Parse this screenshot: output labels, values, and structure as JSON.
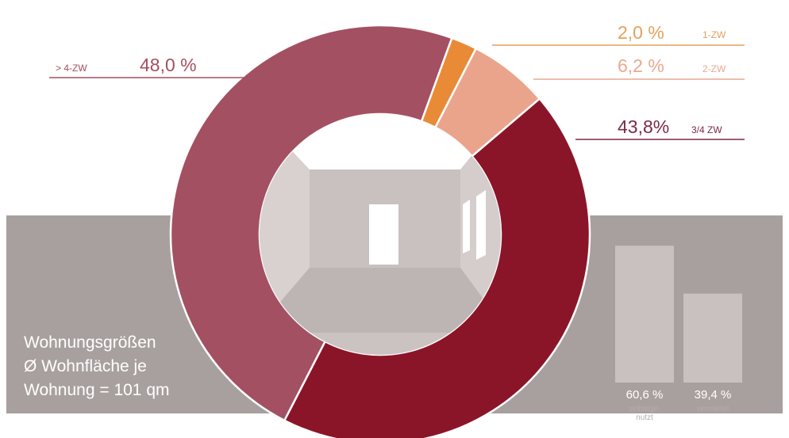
{
  "chart_data": [
    {
      "type": "pie",
      "variant": "donut",
      "slices": [
        {
          "label": "1-ZW",
          "value": 2.0,
          "value_text": "2,0 %",
          "color": "#e98a36"
        },
        {
          "label": "2-ZW",
          "value": 6.2,
          "value_text": "6,2 %",
          "color": "#eba48c"
        },
        {
          "label": "3/4 ZW",
          "value": 43.8,
          "value_text": "43,8%",
          "color": "#8b1528"
        },
        {
          "label": "> 4-ZW",
          "value": 48.0,
          "value_text": "48,0 %",
          "color": "#a35062"
        }
      ]
    },
    {
      "type": "bar",
      "categories": [
        "selbstge-nutzt",
        "vermietet"
      ],
      "category_lines": [
        [
          "selbstge-",
          "nutzt"
        ],
        [
          "vermietet"
        ]
      ],
      "values": [
        60.6,
        39.4
      ],
      "value_texts": [
        "60,6 %",
        "39,4 %"
      ],
      "bar_color": "#c9c1bf"
    }
  ],
  "caption": {
    "line1": "Wohnungsgrößen",
    "line2": "Ø Wohnfläche je",
    "line3": "Wohnung = 101 qm"
  },
  "colors": {
    "band": "#a8a09f",
    "label_1zw": "#e2a15c",
    "label_2zw": "#e9a890",
    "label_34zw": "#7a2a45",
    "label_gt4": "#a35062"
  }
}
